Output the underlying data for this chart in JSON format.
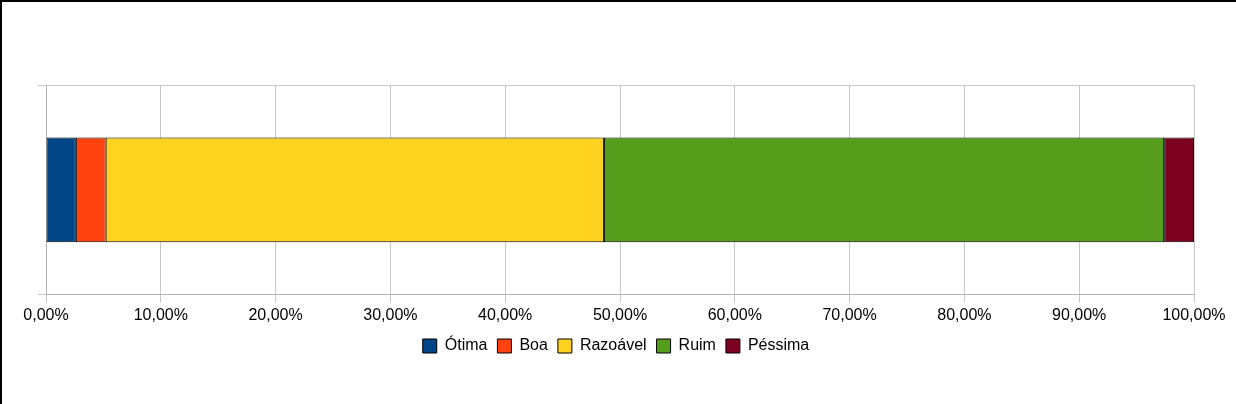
{
  "chart_data": {
    "type": "bar",
    "orientation": "horizontal",
    "stacked": true,
    "categories": [
      null
    ],
    "series": [
      {
        "name": "Ótima",
        "color": "#004586",
        "values": [
          2.6
        ]
      },
      {
        "name": "Boa",
        "color": "#ff420e",
        "values": [
          2.6
        ]
      },
      {
        "name": "Razoável",
        "color": "#ffd320",
        "values": [
          43.4
        ]
      },
      {
        "name": "Ruim",
        "color": "#579d1c",
        "values": [
          48.8
        ]
      },
      {
        "name": "Péssima",
        "color": "#7e0021",
        "values": [
          2.6
        ]
      }
    ],
    "xlim": [
      0,
      100
    ],
    "xticks": [
      {
        "value": 0,
        "label": "0,00%"
      },
      {
        "value": 10,
        "label": "10,00%"
      },
      {
        "value": 20,
        "label": "20,00%"
      },
      {
        "value": 30,
        "label": "30,00%"
      },
      {
        "value": 40,
        "label": "40,00%"
      },
      {
        "value": 50,
        "label": "50,00%"
      },
      {
        "value": 60,
        "label": "60,00%"
      },
      {
        "value": 70,
        "label": "70,00%"
      },
      {
        "value": 80,
        "label": "80,00%"
      },
      {
        "value": 90,
        "label": "90,00%"
      },
      {
        "value": 100,
        "label": "100,00%"
      }
    ],
    "grid": true,
    "legend": "bottom"
  }
}
